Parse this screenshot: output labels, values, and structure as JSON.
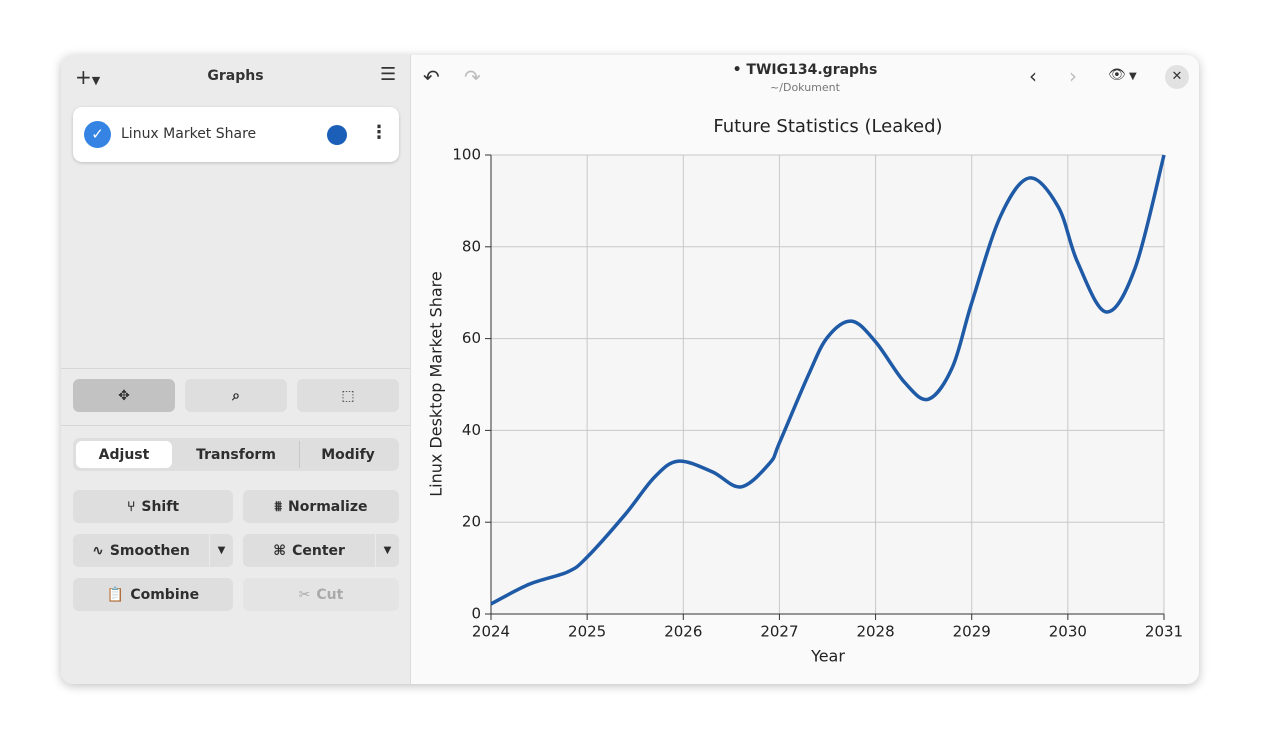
{
  "window": {
    "title": "• TWIG134.graphs",
    "subtitle": "~/Dokument"
  },
  "sidebar": {
    "title": "Graphs",
    "items": [
      {
        "label": "Linux Market Share",
        "color": "#1c5fb8"
      }
    ]
  },
  "toolbar": {
    "tabs": [
      "Adjust",
      "Transform",
      "Modify"
    ],
    "actions": [
      "Shift",
      "Normalize",
      "Smoothen",
      "Center",
      "Combine",
      "Cut"
    ]
  },
  "chart_data": {
    "type": "line",
    "title": "Future Statistics (Leaked)",
    "x_label": "Year",
    "y_label": "Linux Desktop Market Share",
    "x": [
      2024.0,
      2024.4,
      2024.8,
      2025.0,
      2025.4,
      2025.7,
      2025.95,
      2026.3,
      2026.6,
      2026.9,
      2027.0,
      2027.3,
      2027.5,
      2027.75,
      2028.0,
      2028.3,
      2028.55,
      2028.8,
      2029.0,
      2029.3,
      2029.6,
      2029.9,
      2030.1,
      2030.4,
      2030.7,
      2031.0
    ],
    "series": [
      {
        "name": "Linux Market Share",
        "color": "#1f5aa6",
        "values": [
          2.2,
          6.5,
          9.2,
          12.4,
          21.8,
          29.8,
          33.3,
          31,
          27.7,
          32.9,
          37.3,
          52,
          60.3,
          63.8,
          59.3,
          50.5,
          46.8,
          53.8,
          67.8,
          86.7,
          95,
          88.7,
          76.7,
          65.8,
          75.4,
          100
        ]
      }
    ],
    "xlim": [
      2024,
      2031
    ],
    "xticks": [
      2024,
      2025,
      2026,
      2027,
      2028,
      2029,
      2030,
      2031
    ],
    "ylim": [
      0,
      100
    ],
    "yticks": [
      0,
      20,
      40,
      60,
      80,
      100
    ],
    "grid": true
  }
}
